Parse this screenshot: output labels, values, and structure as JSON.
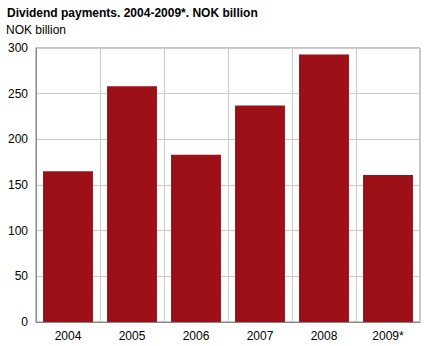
{
  "chart_data": {
    "type": "bar",
    "title": "Dividend payments. 2004-2009*. NOK billion",
    "y_label": "NOK billion",
    "categories": [
      "2004",
      "2005",
      "2006",
      "2007",
      "2008",
      "2009*"
    ],
    "values": [
      165,
      258,
      183,
      237,
      293,
      161
    ],
    "color": "#9c1118",
    "ylim": [
      0,
      300
    ],
    "yticks": [
      0,
      50,
      100,
      150,
      200,
      250,
      300
    ],
    "grid": true
  }
}
